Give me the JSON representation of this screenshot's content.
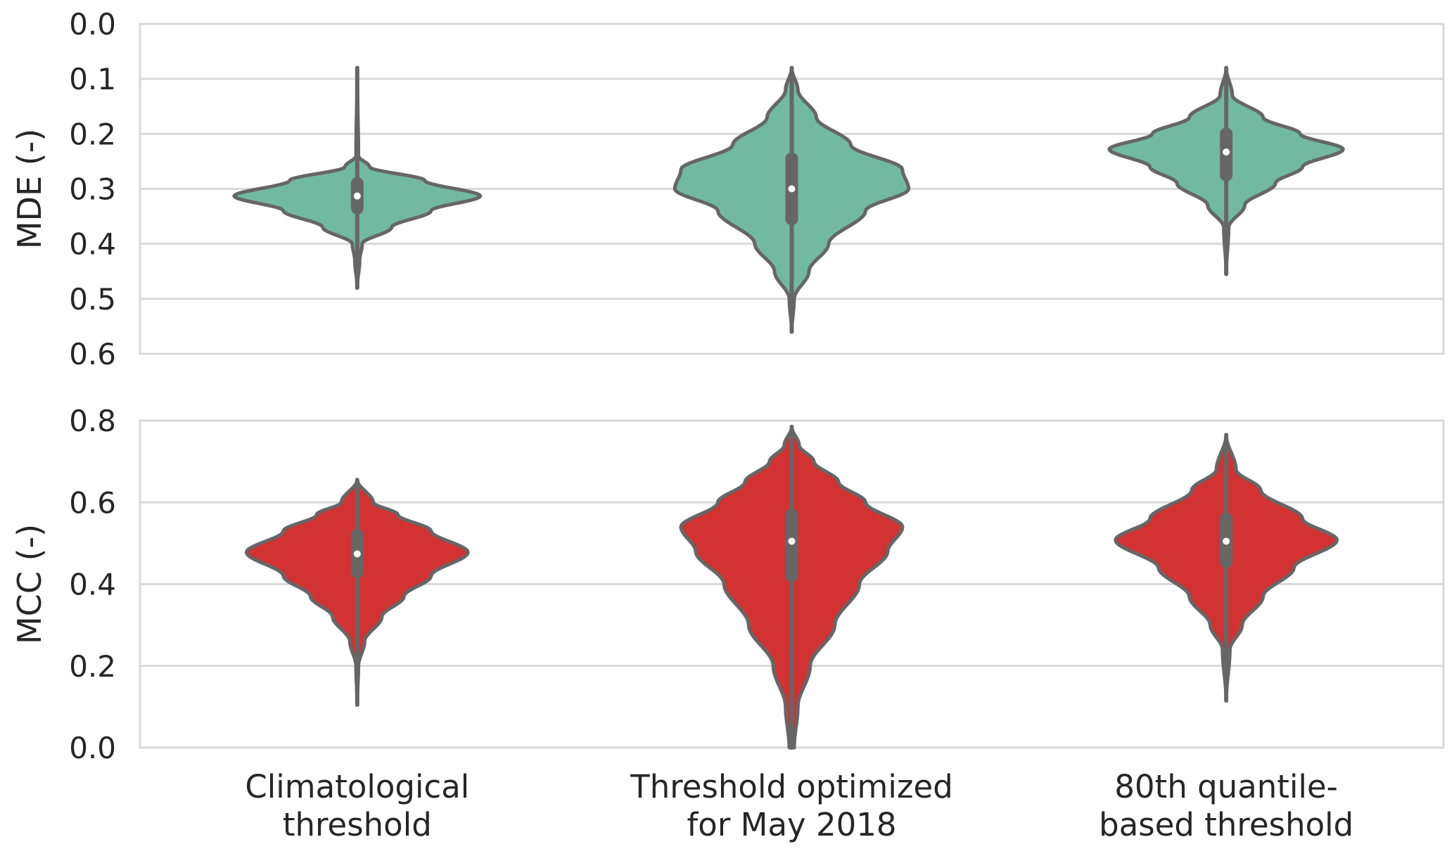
{
  "chart_data": [
    {
      "type": "violin",
      "ylabel": "MDE (-)",
      "ylim": [
        0.0,
        0.6
      ],
      "y_inverted": true,
      "yticks": [
        "0.0",
        "0.1",
        "0.2",
        "0.3",
        "0.4",
        "0.5",
        "0.6"
      ],
      "grid": true,
      "color": "#72b9a2",
      "categories": [
        "Climatological\nthreshold",
        "Threshold optimized\nfor May 2018",
        "80th quantile-\nbased threshold"
      ],
      "violins": [
        {
          "min": 0.08,
          "max": 0.48,
          "q1": 0.29,
          "median": 0.313,
          "q3": 0.335,
          "profile": [
            [
              0.08,
              0.0
            ],
            [
              0.24,
              0.01
            ],
            [
              0.26,
              0.1
            ],
            [
              0.285,
              0.55
            ],
            [
              0.313,
              1.0
            ],
            [
              0.34,
              0.6
            ],
            [
              0.37,
              0.28
            ],
            [
              0.4,
              0.04
            ],
            [
              0.43,
              0.02
            ],
            [
              0.48,
              0.0
            ]
          ]
        },
        {
          "min": 0.08,
          "max": 0.56,
          "q1": 0.245,
          "median": 0.3,
          "q3": 0.355,
          "profile": [
            [
              0.08,
              0.0
            ],
            [
              0.12,
              0.05
            ],
            [
              0.17,
              0.2
            ],
            [
              0.22,
              0.48
            ],
            [
              0.265,
              0.9
            ],
            [
              0.3,
              0.95
            ],
            [
              0.34,
              0.6
            ],
            [
              0.4,
              0.3
            ],
            [
              0.45,
              0.14
            ],
            [
              0.5,
              0.02
            ],
            [
              0.56,
              0.0
            ]
          ]
        },
        {
          "min": 0.08,
          "max": 0.455,
          "q1": 0.2,
          "median": 0.233,
          "q3": 0.275,
          "profile": [
            [
              0.08,
              0.0
            ],
            [
              0.13,
              0.05
            ],
            [
              0.17,
              0.3
            ],
            [
              0.2,
              0.6
            ],
            [
              0.228,
              0.95
            ],
            [
              0.26,
              0.62
            ],
            [
              0.29,
              0.4
            ],
            [
              0.33,
              0.15
            ],
            [
              0.37,
              0.02
            ],
            [
              0.455,
              0.0
            ]
          ]
        }
      ]
    },
    {
      "type": "violin",
      "ylabel": "MCC (-)",
      "ylim": [
        0.0,
        0.8
      ],
      "yticks": [
        "0.0",
        "0.2",
        "0.4",
        "0.6",
        "0.8"
      ],
      "grid": true,
      "color": "#d23232",
      "categories": [
        "Climatological\nthreshold",
        "Threshold optimized\nfor May 2018",
        "80th quantile-\nbased threshold"
      ],
      "violins": [
        {
          "min": 0.105,
          "max": 0.655,
          "q1": 0.43,
          "median": 0.474,
          "q3": 0.52,
          "profile": [
            [
              0.105,
              0.0
            ],
            [
              0.2,
              0.01
            ],
            [
              0.26,
              0.06
            ],
            [
              0.32,
              0.2
            ],
            [
              0.37,
              0.38
            ],
            [
              0.42,
              0.6
            ],
            [
              0.478,
              0.9
            ],
            [
              0.53,
              0.6
            ],
            [
              0.57,
              0.33
            ],
            [
              0.6,
              0.13
            ],
            [
              0.655,
              0.0
            ]
          ]
        },
        {
          "min": 0.0,
          "max": 0.785,
          "q1": 0.42,
          "median": 0.505,
          "q3": 0.57,
          "profile": [
            [
              0.0,
              0.02
            ],
            [
              0.1,
              0.05
            ],
            [
              0.2,
              0.15
            ],
            [
              0.3,
              0.35
            ],
            [
              0.4,
              0.55
            ],
            [
              0.48,
              0.78
            ],
            [
              0.54,
              0.9
            ],
            [
              0.6,
              0.6
            ],
            [
              0.65,
              0.38
            ],
            [
              0.7,
              0.18
            ],
            [
              0.74,
              0.06
            ],
            [
              0.785,
              0.0
            ]
          ]
        },
        {
          "min": 0.115,
          "max": 0.765,
          "q1": 0.455,
          "median": 0.505,
          "q3": 0.56,
          "profile": [
            [
              0.115,
              0.0
            ],
            [
              0.24,
              0.03
            ],
            [
              0.3,
              0.13
            ],
            [
              0.37,
              0.3
            ],
            [
              0.44,
              0.55
            ],
            [
              0.508,
              0.9
            ],
            [
              0.56,
              0.62
            ],
            [
              0.63,
              0.28
            ],
            [
              0.68,
              0.08
            ],
            [
              0.765,
              0.0
            ]
          ]
        }
      ]
    }
  ]
}
